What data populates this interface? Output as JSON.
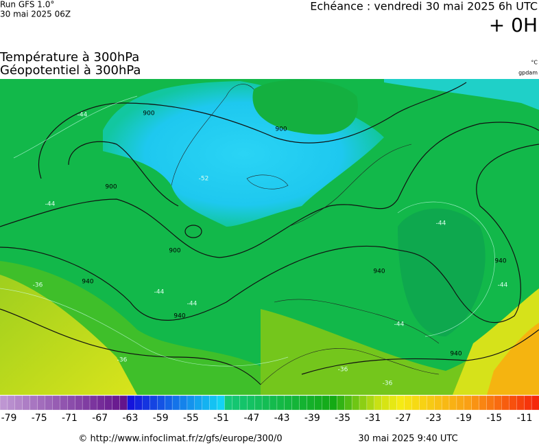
{
  "header": {
    "model": "Run GFS 1.0°",
    "run": "30 mai 2025 06Z",
    "echeance": "Echéance : vendredi 30 mai 2025 6h UTC",
    "offset": "+ 0H"
  },
  "titles": {
    "lines": [
      "Température à 300hPa",
      "Géopotentiel à 300hPa"
    ],
    "units": [
      "°C",
      "gpdam"
    ]
  },
  "map": {
    "contour_labels": [
      "900",
      "900",
      "900",
      "900",
      "940",
      "940",
      "940",
      "940",
      "940",
      "-44",
      "-44",
      "-44",
      "-44",
      "-44",
      "-44",
      "-44",
      "-52",
      "-36",
      "-36",
      "-36",
      "-36"
    ]
  },
  "colorbar": {
    "ticks": [
      -79,
      -75,
      -71,
      -67,
      -63,
      -59,
      -55,
      -51,
      -47,
      -43,
      -39,
      -35,
      -31,
      -27,
      -23,
      -19,
      -15,
      -11
    ]
  },
  "footer": {
    "url": "© http://www.infoclimat.fr/z/gfs/europe/300/0",
    "date": "30 mai 2025  9:40 UTC"
  }
}
